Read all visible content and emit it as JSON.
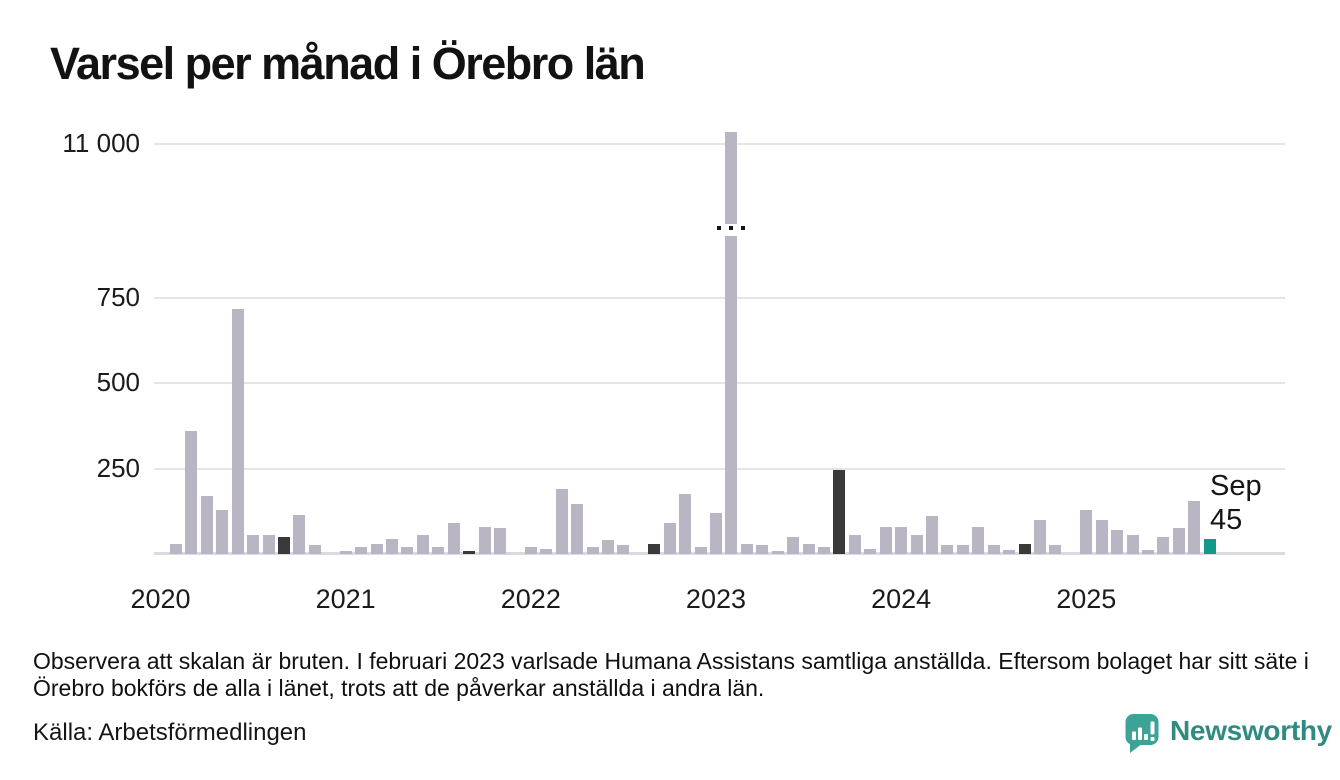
{
  "title": "Varsel per månad i Örebro län",
  "annotation": {
    "line1": "Sep",
    "line2": "45"
  },
  "footnote": "Observera att skalan är bruten. I februari 2023 varlsade Humana Assistans samtliga anställda. Eftersom bolaget har sitt säte i Örebro bokförs de alla i länet, trots att de påverkar anställda i andra län.",
  "source": "Källa: Arbetsförmedlingen",
  "logo": {
    "text": "Newsworthy"
  },
  "colors": {
    "bar_normal": "#b9b5c3",
    "bar_dark": "#3a3a3a",
    "bar_accent": "#12998a",
    "grid": "#e5e4e9",
    "logo_icon": "#3da396",
    "logo_text": "#2f8b80"
  },
  "chart_data": {
    "type": "bar",
    "title": "Varsel per månad i Örebro län",
    "xlabel": "",
    "ylabel": "",
    "broken_scale": true,
    "break_between": [
      900,
      11000
    ],
    "ylim": [
      0,
      11200
    ],
    "grid": true,
    "yticks": [
      {
        "label": "11 000",
        "value": 11000
      },
      {
        "label": "750",
        "value": 750
      },
      {
        "label": "500",
        "value": 500
      },
      {
        "label": "250",
        "value": 250
      }
    ],
    "xticks": [
      "2020",
      "2021",
      "2022",
      "2023",
      "2024",
      "2025"
    ],
    "series": [
      {
        "m": "2020-01",
        "v": 0,
        "s": "normal"
      },
      {
        "m": "2020-02",
        "v": 30,
        "s": "normal"
      },
      {
        "m": "2020-03",
        "v": 360,
        "s": "normal"
      },
      {
        "m": "2020-04",
        "v": 170,
        "s": "normal"
      },
      {
        "m": "2020-05",
        "v": 130,
        "s": "normal"
      },
      {
        "m": "2020-06",
        "v": 715,
        "s": "normal"
      },
      {
        "m": "2020-07",
        "v": 55,
        "s": "normal"
      },
      {
        "m": "2020-08",
        "v": 55,
        "s": "normal"
      },
      {
        "m": "2020-09",
        "v": 50,
        "s": "dark"
      },
      {
        "m": "2020-10",
        "v": 115,
        "s": "normal"
      },
      {
        "m": "2020-11",
        "v": 25,
        "s": "normal"
      },
      {
        "m": "2020-12",
        "v": 0,
        "s": "normal"
      },
      {
        "m": "2021-01",
        "v": 10,
        "s": "normal"
      },
      {
        "m": "2021-02",
        "v": 20,
        "s": "normal"
      },
      {
        "m": "2021-03",
        "v": 30,
        "s": "normal"
      },
      {
        "m": "2021-04",
        "v": 45,
        "s": "normal"
      },
      {
        "m": "2021-05",
        "v": 20,
        "s": "normal"
      },
      {
        "m": "2021-06",
        "v": 55,
        "s": "normal"
      },
      {
        "m": "2021-07",
        "v": 20,
        "s": "normal"
      },
      {
        "m": "2021-08",
        "v": 90,
        "s": "normal"
      },
      {
        "m": "2021-09",
        "v": 10,
        "s": "dark"
      },
      {
        "m": "2021-10",
        "v": 80,
        "s": "normal"
      },
      {
        "m": "2021-11",
        "v": 75,
        "s": "normal"
      },
      {
        "m": "2021-12",
        "v": 0,
        "s": "normal"
      },
      {
        "m": "2022-01",
        "v": 20,
        "s": "normal"
      },
      {
        "m": "2022-02",
        "v": 15,
        "s": "normal"
      },
      {
        "m": "2022-03",
        "v": 190,
        "s": "normal"
      },
      {
        "m": "2022-04",
        "v": 145,
        "s": "normal"
      },
      {
        "m": "2022-05",
        "v": 20,
        "s": "normal"
      },
      {
        "m": "2022-06",
        "v": 40,
        "s": "normal"
      },
      {
        "m": "2022-07",
        "v": 25,
        "s": "normal"
      },
      {
        "m": "2022-08",
        "v": 0,
        "s": "normal"
      },
      {
        "m": "2022-09",
        "v": 30,
        "s": "dark"
      },
      {
        "m": "2022-10",
        "v": 90,
        "s": "normal"
      },
      {
        "m": "2022-11",
        "v": 175,
        "s": "normal"
      },
      {
        "m": "2022-12",
        "v": 20,
        "s": "normal"
      },
      {
        "m": "2023-01",
        "v": 120,
        "s": "normal"
      },
      {
        "m": "2023-02",
        "v": 11200,
        "s": "break"
      },
      {
        "m": "2023-03",
        "v": 30,
        "s": "normal"
      },
      {
        "m": "2023-04",
        "v": 25,
        "s": "normal"
      },
      {
        "m": "2023-05",
        "v": 10,
        "s": "normal"
      },
      {
        "m": "2023-06",
        "v": 50,
        "s": "normal"
      },
      {
        "m": "2023-07",
        "v": 30,
        "s": "normal"
      },
      {
        "m": "2023-08",
        "v": 20,
        "s": "normal"
      },
      {
        "m": "2023-09",
        "v": 245,
        "s": "dark"
      },
      {
        "m": "2023-10",
        "v": 55,
        "s": "normal"
      },
      {
        "m": "2023-11",
        "v": 15,
        "s": "normal"
      },
      {
        "m": "2023-12",
        "v": 80,
        "s": "normal"
      },
      {
        "m": "2024-01",
        "v": 80,
        "s": "normal"
      },
      {
        "m": "2024-02",
        "v": 55,
        "s": "normal"
      },
      {
        "m": "2024-03",
        "v": 110,
        "s": "normal"
      },
      {
        "m": "2024-04",
        "v": 25,
        "s": "normal"
      },
      {
        "m": "2024-05",
        "v": 25,
        "s": "normal"
      },
      {
        "m": "2024-06",
        "v": 80,
        "s": "normal"
      },
      {
        "m": "2024-07",
        "v": 25,
        "s": "normal"
      },
      {
        "m": "2024-08",
        "v": 12,
        "s": "normal"
      },
      {
        "m": "2024-09",
        "v": 30,
        "s": "dark"
      },
      {
        "m": "2024-10",
        "v": 100,
        "s": "normal"
      },
      {
        "m": "2024-11",
        "v": 25,
        "s": "normal"
      },
      {
        "m": "2024-12",
        "v": 0,
        "s": "normal"
      },
      {
        "m": "2025-01",
        "v": 130,
        "s": "normal"
      },
      {
        "m": "2025-02",
        "v": 100,
        "s": "normal"
      },
      {
        "m": "2025-03",
        "v": 70,
        "s": "normal"
      },
      {
        "m": "2025-04",
        "v": 55,
        "s": "normal"
      },
      {
        "m": "2025-05",
        "v": 12,
        "s": "normal"
      },
      {
        "m": "2025-06",
        "v": 50,
        "s": "normal"
      },
      {
        "m": "2025-07",
        "v": 75,
        "s": "normal"
      },
      {
        "m": "2025-08",
        "v": 155,
        "s": "normal"
      },
      {
        "m": "2025-09",
        "v": 45,
        "s": "accent"
      }
    ]
  }
}
